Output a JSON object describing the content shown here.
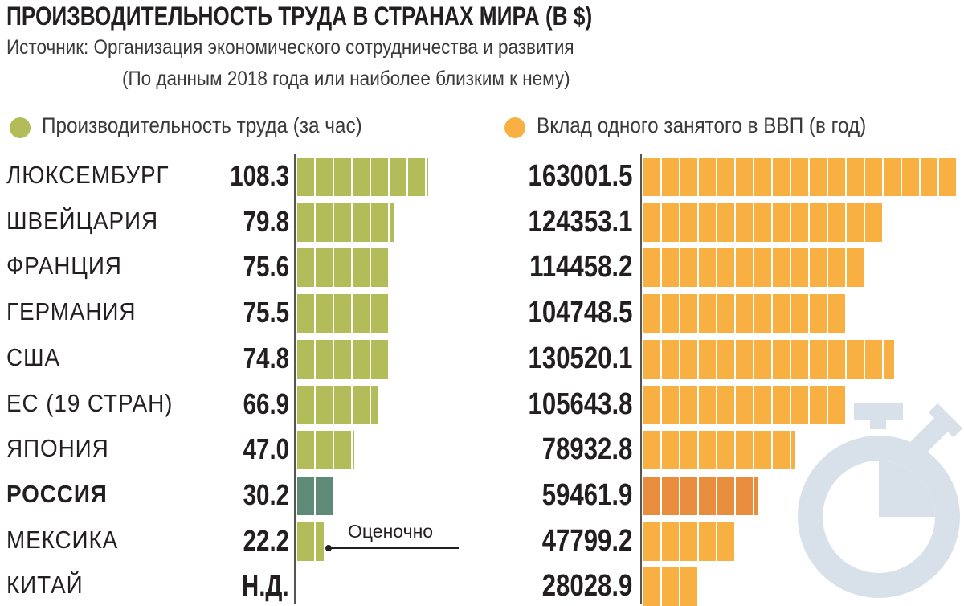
{
  "title": "ПРОИЗВОДИТЕЛЬНОСТЬ ТРУДА В СТРАНАХ МИРА (В $)",
  "subtitle": "Источник: Организация экономического сотрудничества и развития",
  "subtitle2": "(По данным 2018 года или наиболее близким к нему)",
  "note": "Оценочно",
  "colors": {
    "green": "#b2bc59",
    "russia_green": "#5e8b78",
    "orange": "#f8b043",
    "russia_orange": "#e88c3e",
    "stopwatch": "#d8e1ea"
  },
  "decoration_icon": "stopwatch-icon",
  "chart_data": [
    {
      "type": "bar",
      "orientation": "horizontal",
      "legend": "Производительность труда (за час)",
      "categories": [
        "ЛЮКСЕМБУРГ",
        "ШВЕЙЦАРИЯ",
        "ФРАНЦИЯ",
        "ГЕРМАНИЯ",
        "США",
        "ЕС (19 СТРАН)",
        "ЯПОНИЯ",
        "РОССИЯ",
        "МЕКСИКА",
        "КИТАЙ"
      ],
      "labels": [
        "108.3",
        "79.8",
        "75.6",
        "75.5",
        "74.8",
        "66.9",
        "47.0",
        "30.2",
        "22.2",
        "Н.Д."
      ],
      "values": [
        108.3,
        79.8,
        75.6,
        75.5,
        74.8,
        66.9,
        47.0,
        30.2,
        22.2,
        null
      ],
      "highlight": "РОССИЯ"
    },
    {
      "type": "bar",
      "orientation": "horizontal",
      "legend": "Вклад одного занятого в ВВП (в год)",
      "categories": [
        "ЛЮКСЕМБУРГ",
        "ШВЕЙЦАРИЯ",
        "ФРАНЦИЯ",
        "ГЕРМАНИЯ",
        "США",
        "ЕС (19 СТРАН)",
        "ЯПОНИЯ",
        "РОССИЯ",
        "МЕКСИКА",
        "КИТАЙ"
      ],
      "labels": [
        "163001.5",
        "124353.1",
        "114458.2",
        "104748.5",
        "130520.1",
        "105643.8",
        "78932.8",
        "59461.9",
        "47799.2",
        "28028.9"
      ],
      "values": [
        163001.5,
        124353.1,
        114458.2,
        104748.5,
        130520.1,
        105643.8,
        78932.8,
        59461.9,
        47799.2,
        28028.9
      ],
      "highlight": "РОССИЯ"
    }
  ]
}
